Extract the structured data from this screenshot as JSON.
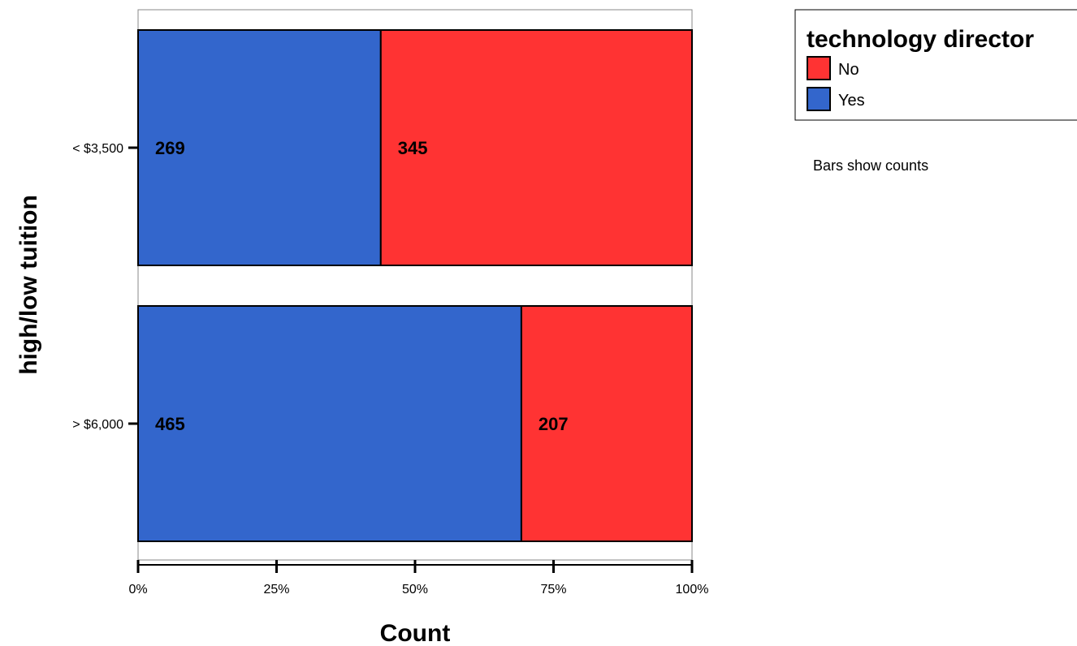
{
  "chart_data": {
    "type": "bar",
    "orientation": "horizontal",
    "stacked": true,
    "normalized": true,
    "title": "",
    "xlabel": "Count",
    "ylabel": "high/low tuition",
    "categories": [
      "< $3,500",
      "> $6,000"
    ],
    "series": [
      {
        "name": "Yes",
        "color": "#3366cc",
        "values": [
          269,
          465
        ]
      },
      {
        "name": "No",
        "color": "#ff3333",
        "values": [
          345,
          207
        ]
      }
    ],
    "x_ticks": [
      "0%",
      "25%",
      "50%",
      "75%",
      "100%"
    ],
    "xlim": [
      0,
      100
    ],
    "grid": false,
    "legend": {
      "title": "technology director",
      "placement": "top-right",
      "items": [
        {
          "label": "No",
          "color": "#ff3333"
        },
        {
          "label": "Yes",
          "color": "#3366cc"
        }
      ]
    },
    "annotation": "Bars show counts"
  }
}
